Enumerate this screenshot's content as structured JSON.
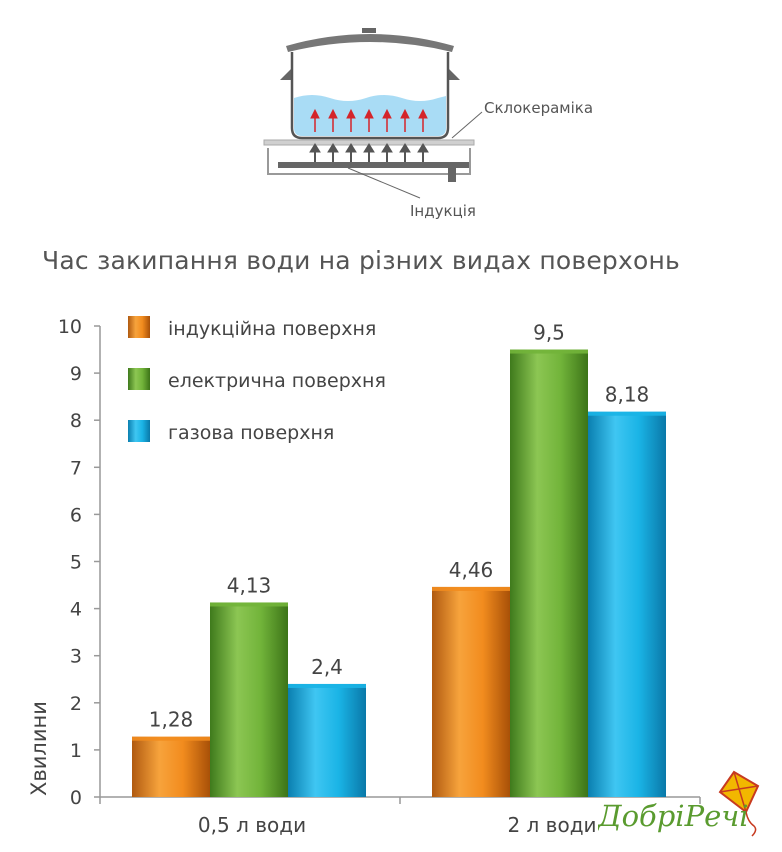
{
  "diagram": {
    "label_glass": "Склокераміка",
    "label_induction": "Індукція"
  },
  "chart_data": {
    "type": "bar",
    "title": "Час закипання води на різних видах поверхонь",
    "ylabel": "Хвилини",
    "xlabel": "",
    "ylim": [
      0,
      10
    ],
    "yticks": [
      "0",
      "1",
      "2",
      "3",
      "4",
      "5",
      "6",
      "7",
      "8",
      "9",
      "10"
    ],
    "categories": [
      "0,5 л води",
      "2 л води"
    ],
    "legend_position": "top-left",
    "grid": false,
    "series": [
      {
        "name": "індукційна поверхня",
        "color": "#f28c1e",
        "values": [
          1.28,
          4.46
        ],
        "labels": [
          "1,28",
          "4,46"
        ]
      },
      {
        "name": "електрична поверхня",
        "color": "#72b43a",
        "values": [
          4.13,
          9.5
        ],
        "labels": [
          "4,13",
          "9,5"
        ]
      },
      {
        "name": "газова поверхня",
        "color": "#1ab4e6",
        "values": [
          2.4,
          8.18
        ],
        "labels": [
          "2,4",
          "8,18"
        ]
      }
    ]
  },
  "logo": {
    "text": "ДобріРечі",
    "color": "#5a9b2f"
  }
}
